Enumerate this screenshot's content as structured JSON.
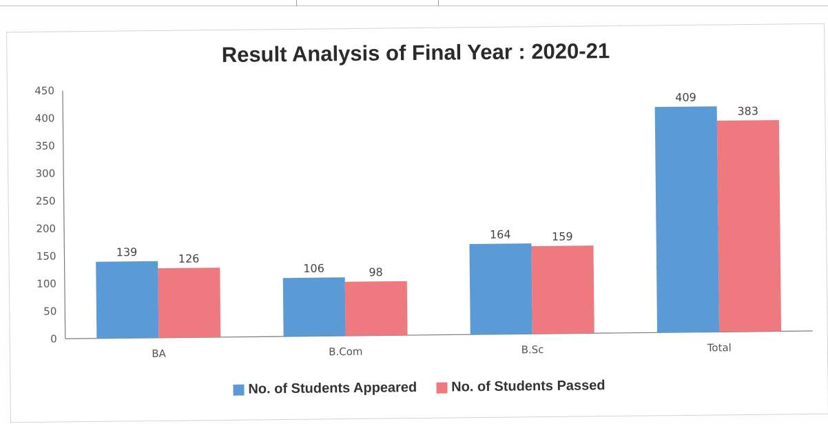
{
  "chart_data": {
    "type": "bar",
    "title": "Result Analysis of Final Year : 2020-21",
    "categories": [
      "BA",
      "B.Com",
      "B.Sc",
      "Total"
    ],
    "series": [
      {
        "name": "No. of Students Appeared",
        "values": [
          139,
          106,
          164,
          409
        ],
        "color": "#5b9bd5"
      },
      {
        "name": "No. of Students Passed",
        "values": [
          126,
          98,
          159,
          383
        ],
        "color": "#ee7a80"
      }
    ],
    "ylim": [
      0,
      450
    ],
    "yticks": [
      0,
      50,
      100,
      150,
      200,
      250,
      300,
      350,
      400,
      450
    ],
    "grid": false,
    "legend": "bottom"
  }
}
